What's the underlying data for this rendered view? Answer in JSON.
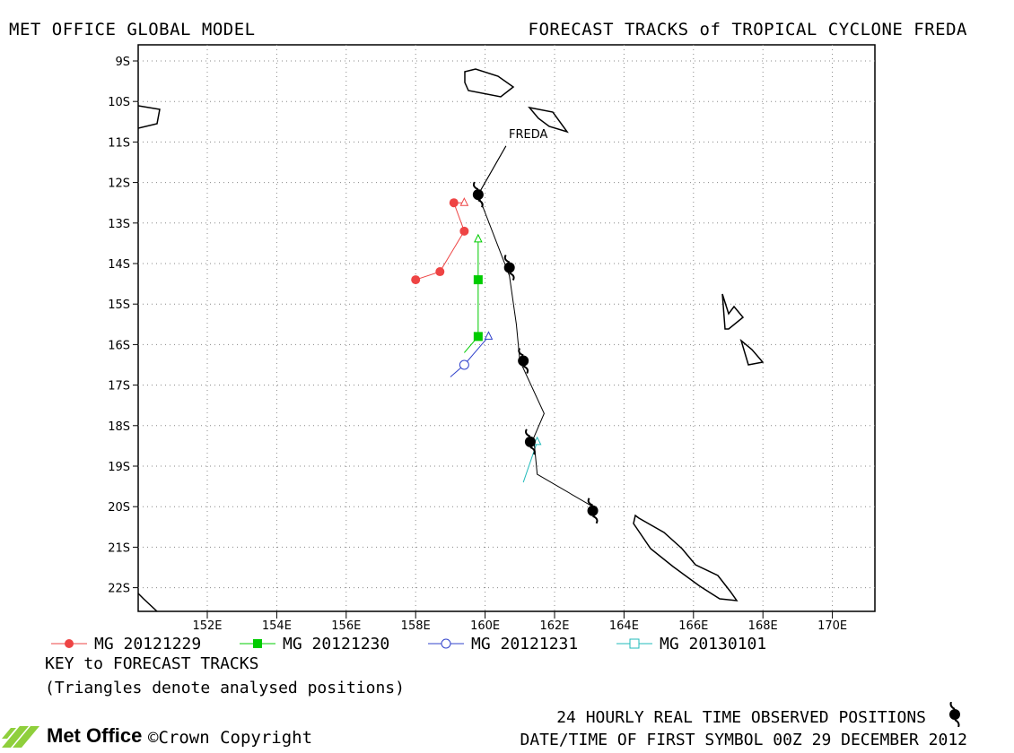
{
  "header": {
    "left": "MET OFFICE GLOBAL MODEL",
    "right": "FORECAST TRACKS of TROPICAL CYCLONE FREDA"
  },
  "map": {
    "lon_ticks": [
      "152E",
      "154E",
      "156E",
      "158E",
      "160E",
      "162E",
      "164E",
      "166E",
      "168E",
      "170E"
    ],
    "lat_ticks": [
      "9S",
      "10S",
      "11S",
      "12S",
      "13S",
      "14S",
      "15S",
      "16S",
      "17S",
      "18S",
      "19S",
      "20S",
      "21S",
      "22S"
    ],
    "storm_label": "FREDA",
    "observed_positions": [
      {
        "lat": -12.3,
        "lon": 159.8
      },
      {
        "lat": -14.1,
        "lon": 160.7
      },
      {
        "lat": -16.4,
        "lon": 161.1
      },
      {
        "lat": -18.4,
        "lon": 161.3
      },
      {
        "lat": -20.1,
        "lon": 163.1
      }
    ],
    "colors": {
      "observed": "#000000",
      "mg20121229": "#ee4444",
      "mg20121230": "#00cc00",
      "mg20121231": "#3344cc",
      "mg20130101": "#22bbbb",
      "land": "#000000",
      "grid": "#888888"
    }
  },
  "chart_data": {
    "type": "scatter",
    "series": [
      {
        "name": "MG 20121229",
        "points": [
          [
            159.4,
            -12.5
          ],
          [
            159.1,
            -12.5
          ],
          [
            159.4,
            -13.2
          ],
          [
            158.7,
            -14.2
          ],
          [
            158.0,
            -14.4
          ]
        ]
      },
      {
        "name": "MG 20121230",
        "points": [
          [
            159.8,
            -13.4
          ],
          [
            159.8,
            -14.4
          ],
          [
            159.8,
            -15.8
          ],
          [
            159.4,
            -16.2
          ]
        ]
      },
      {
        "name": "MG 20121231",
        "points": [
          [
            160.1,
            -15.8
          ],
          [
            159.4,
            -16.5
          ],
          [
            159.0,
            -16.8
          ]
        ]
      },
      {
        "name": "MG 20130101",
        "points": [
          [
            161.5,
            -18.4
          ],
          [
            161.1,
            -19.4
          ]
        ]
      }
    ]
  },
  "legend": [
    {
      "label": "MG 20121229",
      "color": "#ee4444",
      "symbol": "filled-circle"
    },
    {
      "label": "MG 20121230",
      "color": "#00cc00",
      "symbol": "filled-square"
    },
    {
      "label": "MG 20121231",
      "color": "#3344cc",
      "symbol": "open-circle"
    },
    {
      "label": "MG 20130101",
      "color": "#22bbbb",
      "symbol": "open-square"
    }
  ],
  "notes": {
    "key_title": "KEY to FORECAST TRACKS",
    "triangles": "(Triangles denote analysed positions)",
    "observed": "24 HOURLY REAL TIME OBSERVED POSITIONS",
    "datetime": "DATE/TIME OF FIRST SYMBOL 00Z 29 DECEMBER 2012"
  },
  "footer": {
    "logo": "Met Office",
    "copyright": "©Crown Copyright"
  }
}
